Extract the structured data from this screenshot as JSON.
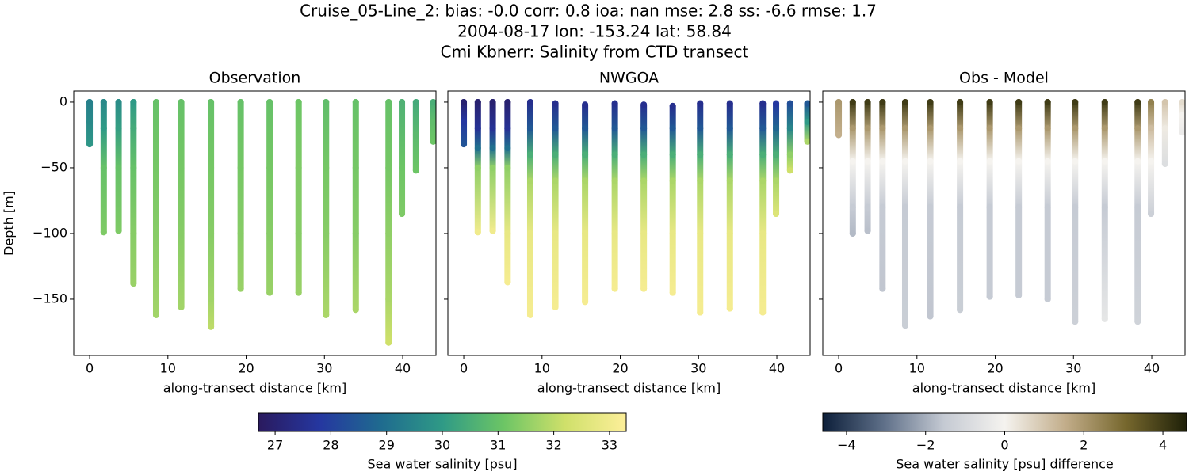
{
  "title_lines": [
    "Cruise_05-Line_2: bias: -0.0  corr: 0.8  ioa: nan  mse: 2.8  ss: -6.6  rmse: 1.7",
    "2004-08-17 lon: -153.24 lat: 58.84",
    "Cmi Kbnerr: Salinity from CTD transect"
  ],
  "chart_data": [
    {
      "type": "scatter",
      "title": "Observation",
      "x_label": "along-transect distance [km]",
      "y_label": "Depth [m]",
      "xlim": [
        -2.03,
        44.25
      ],
      "ylim": [
        -192.8,
        8.4
      ],
      "xticks": [
        0,
        10,
        20,
        30,
        40
      ],
      "yticks": [
        0,
        {
          "value": -50,
          "label": "−50"
        },
        {
          "value": -100,
          "label": "−100"
        },
        {
          "value": -150,
          "label": "−150"
        }
      ],
      "clim": [
        26.7,
        33.3
      ],
      "colormap": [
        "#2a1a5e",
        "#2537a0",
        "#1f6b8f",
        "#2f9a86",
        "#6cc565",
        "#cfe06a",
        "#fdef9a"
      ],
      "colorbar": {
        "label": "Sea water salinity [psu]",
        "ticks": [
          27,
          28,
          29,
          30,
          31,
          32,
          33
        ]
      },
      "stations": [
        {
          "x": 0,
          "depth": [
            0,
            -15,
            -32
          ],
          "values": [
            29.4,
            29.6,
            29.9
          ]
        },
        {
          "x": 1.8,
          "depth": [
            0,
            -20,
            -50,
            -99
          ],
          "values": [
            29.6,
            30.0,
            31.0,
            31.3
          ]
        },
        {
          "x": 3.7,
          "depth": [
            0,
            -20,
            -50,
            -98
          ],
          "values": [
            29.7,
            30.1,
            31.0,
            31.3
          ]
        },
        {
          "x": 5.6,
          "depth": [
            0,
            -20,
            -50,
            -100,
            -138
          ],
          "values": [
            30.0,
            30.4,
            31.0,
            31.4,
            31.6
          ]
        },
        {
          "x": 8.5,
          "depth": [
            0,
            -50,
            -100,
            -162
          ],
          "values": [
            31.0,
            31.2,
            31.4,
            31.7
          ]
        },
        {
          "x": 11.7,
          "depth": [
            0,
            -50,
            -100,
            -156
          ],
          "values": [
            31.0,
            31.2,
            31.4,
            31.7
          ]
        },
        {
          "x": 15.5,
          "depth": [
            0,
            -50,
            -100,
            -150,
            -171
          ],
          "values": [
            31.0,
            31.2,
            31.4,
            31.7,
            32.0
          ]
        },
        {
          "x": 19.3,
          "depth": [
            0,
            -50,
            -100,
            -142
          ],
          "values": [
            31.0,
            31.2,
            31.4,
            31.6
          ]
        },
        {
          "x": 23.0,
          "depth": [
            0,
            -50,
            -100,
            -145
          ],
          "values": [
            31.0,
            31.2,
            31.4,
            31.6
          ]
        },
        {
          "x": 26.7,
          "depth": [
            0,
            -50,
            -100,
            -145
          ],
          "values": [
            31.1,
            31.3,
            31.4,
            31.6
          ]
        },
        {
          "x": 30.2,
          "depth": [
            0,
            -50,
            -100,
            -162
          ],
          "values": [
            30.9,
            31.2,
            31.4,
            31.8
          ]
        },
        {
          "x": 34.0,
          "depth": [
            0,
            -50,
            -100,
            -158
          ],
          "values": [
            31.0,
            31.2,
            31.4,
            31.8
          ]
        },
        {
          "x": 38.2,
          "depth": [
            0,
            -50,
            -100,
            -150,
            -183
          ],
          "values": [
            31.0,
            31.2,
            31.5,
            31.8,
            32.2
          ]
        },
        {
          "x": 39.9,
          "depth": [
            0,
            -50,
            -85
          ],
          "values": [
            30.6,
            31.1,
            31.3
          ]
        },
        {
          "x": 41.7,
          "depth": [
            0,
            -25,
            -52
          ],
          "values": [
            30.4,
            30.8,
            31.1
          ]
        },
        {
          "x": 43.9,
          "depth": [
            0,
            -15,
            -30
          ],
          "values": [
            30.5,
            30.9,
            31.1
          ]
        }
      ]
    },
    {
      "type": "scatter",
      "title": "NWGOA",
      "x_label": "along-transect distance [km]",
      "xlim": [
        -2.03,
        44.25
      ],
      "ylim": [
        -192.8,
        8.4
      ],
      "xticks": [
        0,
        10,
        20,
        30,
        40
      ],
      "yticks": [
        0,
        -50,
        -100,
        -150
      ],
      "clim": [
        26.7,
        33.3
      ],
      "colormap": [
        "#2a1a5e",
        "#2537a0",
        "#1f6b8f",
        "#2f9a86",
        "#6cc565",
        "#cfe06a",
        "#fdef9a"
      ],
      "stations": [
        {
          "x": 0,
          "depth": [
            0,
            -15,
            -32
          ],
          "values": [
            27.0,
            27.8,
            28.4
          ]
        },
        {
          "x": 1.8,
          "depth": [
            0,
            -20,
            -35,
            -50,
            -99
          ],
          "values": [
            27.0,
            27.6,
            29.0,
            31.5,
            33.0
          ]
        },
        {
          "x": 3.7,
          "depth": [
            0,
            -20,
            -35,
            -50,
            -98
          ],
          "values": [
            27.0,
            27.6,
            29.0,
            31.5,
            33.0
          ]
        },
        {
          "x": 5.6,
          "depth": [
            0,
            -20,
            -35,
            -50,
            -100,
            -137
          ],
          "values": [
            27.0,
            27.6,
            29.0,
            31.5,
            32.8,
            33.1
          ]
        },
        {
          "x": 8.5,
          "depth": [
            0,
            -20,
            -40,
            -60,
            -100,
            -162
          ],
          "values": [
            27.5,
            28.5,
            30.5,
            31.8,
            32.8,
            33.1
          ]
        },
        {
          "x": 11.7,
          "depth": [
            -1,
            -20,
            -40,
            -60,
            -100,
            -156
          ],
          "values": [
            27.5,
            28.5,
            30.5,
            31.8,
            32.8,
            33.1
          ]
        },
        {
          "x": 15.5,
          "depth": [
            -2,
            -20,
            -40,
            -60,
            -100,
            -152
          ],
          "values": [
            27.5,
            28.5,
            30.5,
            31.8,
            32.8,
            33.1
          ]
        },
        {
          "x": 19.3,
          "depth": [
            -1,
            -20,
            -40,
            -60,
            -100,
            -142
          ],
          "values": [
            27.5,
            28.5,
            30.5,
            31.8,
            32.8,
            33.1
          ]
        },
        {
          "x": 23.0,
          "depth": [
            -2,
            -20,
            -40,
            -60,
            -100,
            -142
          ],
          "values": [
            27.5,
            28.5,
            30.5,
            31.8,
            32.8,
            33.1
          ]
        },
        {
          "x": 26.7,
          "depth": [
            -3,
            -20,
            -40,
            -60,
            -100,
            -145
          ],
          "values": [
            27.5,
            28.5,
            30.5,
            31.8,
            32.8,
            33.1
          ]
        },
        {
          "x": 30.2,
          "depth": [
            -1,
            -20,
            -40,
            -60,
            -100,
            -160
          ],
          "values": [
            27.5,
            28.5,
            30.5,
            31.8,
            32.8,
            33.1
          ]
        },
        {
          "x": 34.0,
          "depth": [
            -1,
            -20,
            -40,
            -60,
            -100,
            -157
          ],
          "values": [
            27.5,
            28.5,
            30.5,
            31.8,
            32.8,
            33.1
          ]
        },
        {
          "x": 38.2,
          "depth": [
            -1,
            -20,
            -40,
            -60,
            -100,
            -160
          ],
          "values": [
            27.5,
            28.5,
            30.5,
            31.8,
            32.8,
            33.1
          ]
        },
        {
          "x": 39.9,
          "depth": [
            -1,
            -20,
            -40,
            -60,
            -85
          ],
          "values": [
            27.8,
            28.8,
            30.5,
            31.8,
            32.5
          ]
        },
        {
          "x": 41.7,
          "depth": [
            -1,
            -20,
            -40,
            -52
          ],
          "values": [
            28.3,
            29.5,
            31.5,
            32.2
          ]
        },
        {
          "x": 43.9,
          "depth": [
            -1,
            -15,
            -30
          ],
          "values": [
            28.5,
            30.0,
            31.8
          ]
        }
      ]
    },
    {
      "type": "scatter",
      "title": "Obs - Model",
      "x_label": "along-transect distance [km]",
      "xlim": [
        -2.03,
        44.25
      ],
      "ylim": [
        -192.8,
        8.4
      ],
      "xticks": [
        0,
        10,
        20,
        30,
        40
      ],
      "yticks": [
        0,
        -50,
        -100,
        -150
      ],
      "clim": [
        -4.6,
        4.6
      ],
      "colormap": [
        "#0d1f3a",
        "#5e6f88",
        "#c5cad3",
        "#f5f3ef",
        "#c2ad8a",
        "#76672d",
        "#1e2008"
      ],
      "colorbar": {
        "label": "Sea water salinity [psu] difference",
        "ticks": [
          {
            "value": -4,
            "label": "−4"
          },
          {
            "value": -2,
            "label": "−2"
          },
          0,
          2,
          4
        ]
      },
      "stations": [
        {
          "x": 0,
          "depth": [
            0,
            -25
          ],
          "values": [
            2.0,
            1.5
          ]
        },
        {
          "x": 1.8,
          "depth": [
            0,
            -20,
            -45,
            -80,
            -100
          ],
          "values": [
            4.0,
            2.0,
            0,
            -1.5,
            -1.8
          ]
        },
        {
          "x": 3.7,
          "depth": [
            0,
            -20,
            -45,
            -80,
            -98
          ],
          "values": [
            4.0,
            2.0,
            0,
            -1.5,
            -1.7
          ]
        },
        {
          "x": 5.6,
          "depth": [
            0,
            -20,
            -45,
            -80,
            -142
          ],
          "values": [
            4.0,
            2.0,
            0,
            -1.5,
            -1.6
          ]
        },
        {
          "x": 8.5,
          "depth": [
            0,
            -20,
            -45,
            -80,
            -170
          ],
          "values": [
            4.0,
            2.0,
            0,
            -1.5,
            -1.4
          ]
        },
        {
          "x": 11.7,
          "depth": [
            0,
            -20,
            -45,
            -80,
            -163
          ],
          "values": [
            4.0,
            2.0,
            0,
            -1.5,
            -1.6
          ]
        },
        {
          "x": 15.5,
          "depth": [
            0,
            -20,
            -45,
            -80,
            -158
          ],
          "values": [
            4.0,
            2.0,
            0,
            -1.5,
            -1.4
          ]
        },
        {
          "x": 19.3,
          "depth": [
            0,
            -20,
            -45,
            -80,
            -148
          ],
          "values": [
            4.0,
            2.0,
            0,
            -1.5,
            -1.5
          ]
        },
        {
          "x": 23.0,
          "depth": [
            0,
            -20,
            -45,
            -80,
            -147
          ],
          "values": [
            4.0,
            2.0,
            0,
            -1.5,
            -1.5
          ]
        },
        {
          "x": 26.7,
          "depth": [
            0,
            -20,
            -45,
            -80,
            -150
          ],
          "values": [
            4.0,
            2.0,
            0,
            -1.5,
            -1.5
          ]
        },
        {
          "x": 30.2,
          "depth": [
            0,
            -20,
            -45,
            -80,
            -167
          ],
          "values": [
            4.0,
            2.0,
            0,
            -1.5,
            -1.3
          ]
        },
        {
          "x": 34.0,
          "depth": [
            0,
            -20,
            -45,
            -80,
            -165
          ],
          "values": [
            4.0,
            2.0,
            0,
            -1.5,
            -0.5
          ]
        },
        {
          "x": 38.2,
          "depth": [
            0,
            -20,
            -45,
            -80,
            -167
          ],
          "values": [
            4.0,
            2.0,
            0,
            -1.5,
            -1.2
          ]
        },
        {
          "x": 39.9,
          "depth": [
            0,
            -20,
            -45,
            -85
          ],
          "values": [
            2.5,
            1.2,
            0,
            -1.3
          ]
        },
        {
          "x": 41.7,
          "depth": [
            0,
            -20,
            -47
          ],
          "values": [
            1.0,
            0.2,
            -0.8
          ]
        },
        {
          "x": 43.9,
          "depth": [
            0,
            -10,
            -23
          ],
          "values": [
            0.5,
            0,
            -0.3
          ]
        }
      ]
    }
  ]
}
